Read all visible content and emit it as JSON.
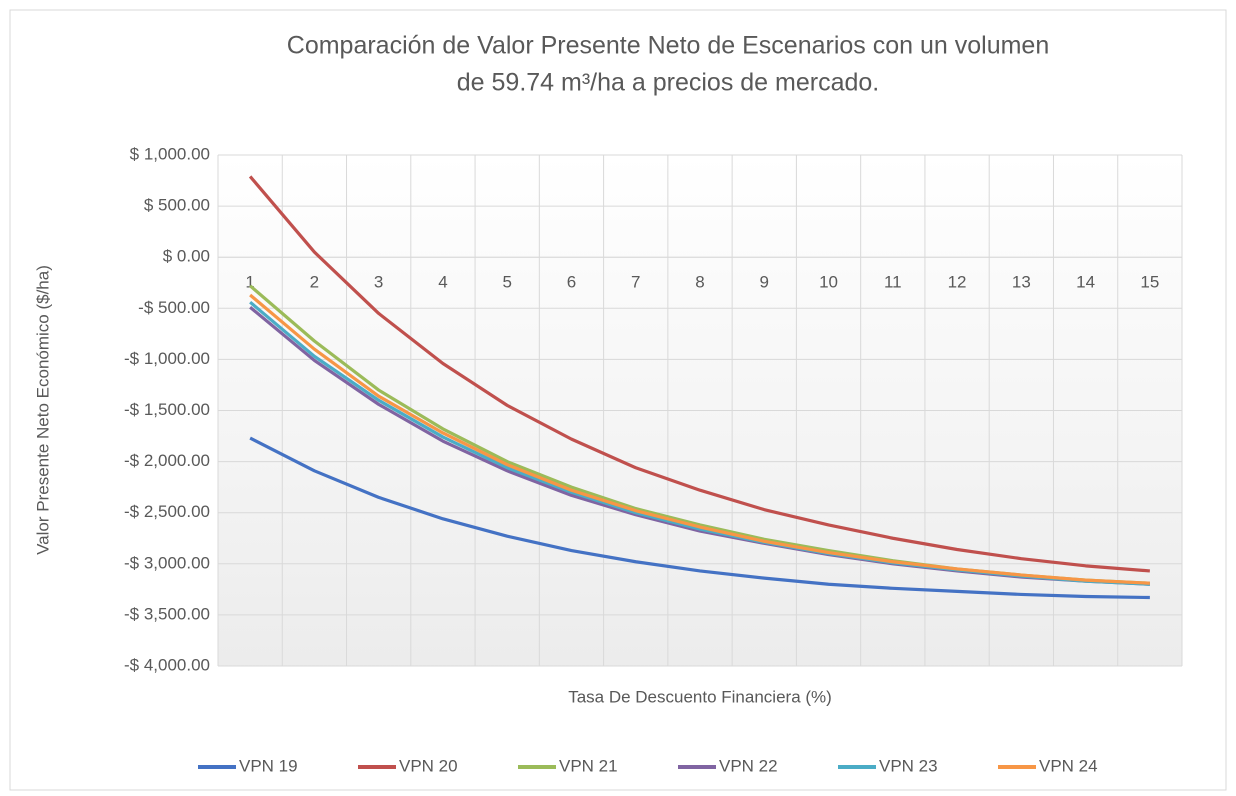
{
  "chart_data": {
    "type": "line",
    "title": [
      "Comparación de Valor Presente Neto de Escenarios con un volumen",
      "de 59.74 m³/ha a precios de mercado."
    ],
    "x_label": "Tasa De Descuento Financiera (%)",
    "y_label": "Valor Presente Neto Económico ($/ha)",
    "categories": [
      "1",
      "2",
      "3",
      "4",
      "5",
      "6",
      "7",
      "8",
      "9",
      "10",
      "11",
      "12",
      "13",
      "14",
      "15"
    ],
    "ylim": [
      -4000,
      1000
    ],
    "yticks": [
      {
        "value": -4000,
        "label": "-$ 4,000.00"
      },
      {
        "value": -3500,
        "label": "-$ 3,500.00"
      },
      {
        "value": -3000,
        "label": "-$ 3,000.00"
      },
      {
        "value": -2500,
        "label": "-$ 2,500.00"
      },
      {
        "value": -2000,
        "label": "-$ 2,000.00"
      },
      {
        "value": -1500,
        "label": "-$ 1,500.00"
      },
      {
        "value": -1000,
        "label": "-$ 1,000.00"
      },
      {
        "value": -500,
        "label": "-$ 500.00"
      },
      {
        "value": 0,
        "label": "$ 0.00"
      },
      {
        "value": 500,
        "label": "$ 500.00"
      },
      {
        "value": 1000,
        "label": "$ 1,000.00"
      }
    ],
    "grid": true,
    "legend": "bottom",
    "series": [
      {
        "name": "VPN 19",
        "color": "#4472c4",
        "values": [
          -1770,
          -2090,
          -2350,
          -2560,
          -2730,
          -2870,
          -2980,
          -3070,
          -3140,
          -3200,
          -3240,
          -3270,
          -3300,
          -3320,
          -3330
        ]
      },
      {
        "name": "VPN 20",
        "color": "#c0504d",
        "values": [
          790,
          50,
          -550,
          -1040,
          -1450,
          -1780,
          -2060,
          -2280,
          -2470,
          -2620,
          -2750,
          -2860,
          -2950,
          -3020,
          -3070
        ]
      },
      {
        "name": "VPN 21",
        "color": "#9bbb59",
        "values": [
          -280,
          -820,
          -1300,
          -1680,
          -2000,
          -2250,
          -2460,
          -2620,
          -2760,
          -2870,
          -2970,
          -3050,
          -3110,
          -3160,
          -3190
        ]
      },
      {
        "name": "VPN 22",
        "color": "#8064a2",
        "values": [
          -490,
          -1010,
          -1440,
          -1800,
          -2090,
          -2330,
          -2520,
          -2680,
          -2800,
          -2910,
          -3000,
          -3070,
          -3130,
          -3170,
          -3200
        ]
      },
      {
        "name": "VPN 23",
        "color": "#4bacc6",
        "values": [
          -440,
          -970,
          -1400,
          -1760,
          -2060,
          -2300,
          -2500,
          -2660,
          -2790,
          -2900,
          -2990,
          -3060,
          -3120,
          -3170,
          -3200
        ]
      },
      {
        "name": "VPN 24",
        "color": "#f79646",
        "values": [
          -370,
          -900,
          -1360,
          -1720,
          -2030,
          -2280,
          -2480,
          -2640,
          -2780,
          -2890,
          -2980,
          -3050,
          -3110,
          -3160,
          -3190
        ]
      }
    ]
  }
}
